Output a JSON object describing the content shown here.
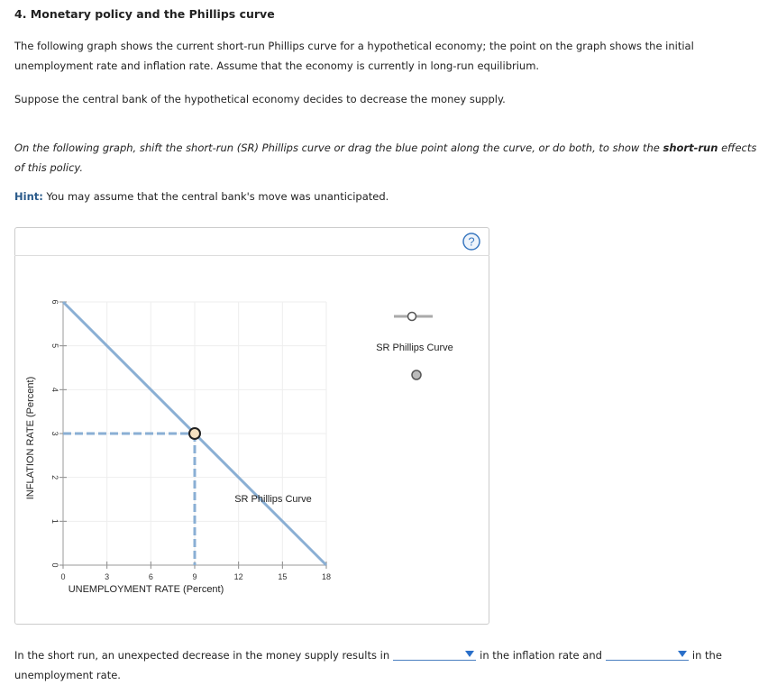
{
  "header": {
    "title": "4. Monetary policy and the Phillips curve"
  },
  "paragraphs": [
    "The following graph shows the current short-run Phillips curve for a hypothetical economy; the point on the graph shows the initial unemployment rate and inflation rate. Assume that the economy is currently in long-run equilibrium.",
    "Suppose the central bank of the hypothetical economy decides to decrease the money supply."
  ],
  "instruction": [
    "On the following graph, shift the short-run (SR) Phillips curve or drag the blue point along the curve, or do both, to show the ",
    "short-run",
    " effects of this policy."
  ],
  "hint": {
    "label": "Hint:",
    "text": "You may assume that the central bank's move was unanticipated."
  },
  "help_icon": "?",
  "chart_data": {
    "type": "line",
    "x": [
      0,
      18
    ],
    "series": [
      {
        "name": "SR Phillips Curve",
        "color": "#8aafd4",
        "values": [
          6,
          0
        ]
      }
    ],
    "point": {
      "x": 9,
      "y": 3
    },
    "annotation": "SR Phillips Curve",
    "xlabel": "UNEMPLOYMENT RATE (Percent)",
    "ylabel": "INFLATION RATE (Percent)",
    "xlim": [
      0,
      18
    ],
    "xticks": [
      0,
      3,
      6,
      9,
      12,
      15,
      18
    ],
    "ylim": [
      0,
      6
    ],
    "yticks": [
      0,
      1,
      2,
      3,
      4,
      5,
      6
    ],
    "grid": true
  },
  "question": {
    "parts": [
      "In the short run, an unexpected decrease in the money supply results in",
      "in the inflation rate and",
      "in the unemployment rate."
    ]
  }
}
